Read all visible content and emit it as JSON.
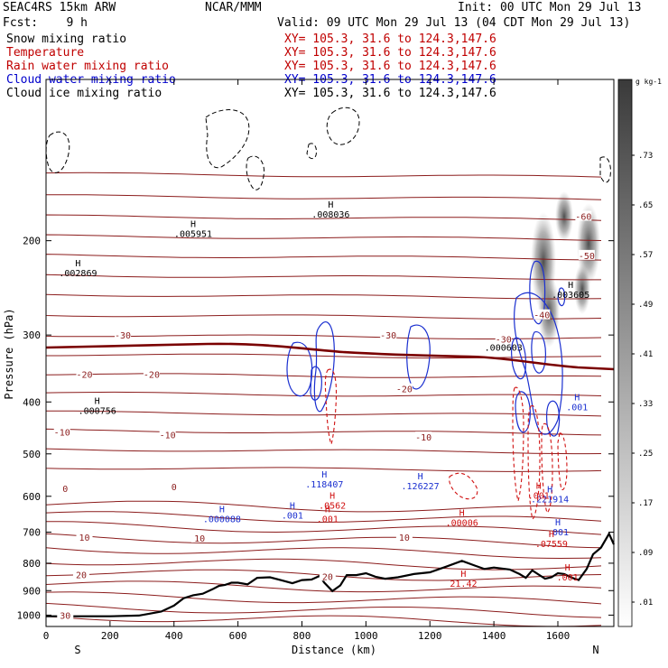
{
  "header": {
    "model": "SEAC4RS 15km ARW",
    "org": "NCAR/MMM",
    "init": "Init: 00 UTC Mon 29 Jul 13",
    "fcst": "Fcst:    9 h",
    "valid": "Valid: 09 UTC Mon 29 Jul 13 (04 CDT Mon 29 Jul 13)",
    "fields": [
      {
        "label": "Snow mixing ratio",
        "xy": "XY= 105.3, 31.6 to 124.3,147.6",
        "color": "#000000"
      },
      {
        "label": "Temperature",
        "xy": "XY= 105.3, 31.6 to 124.3,147.6",
        "color": "#c00000"
      },
      {
        "label": "Rain water mixing ratio",
        "xy": "XY= 105.3, 31.6 to 124.3,147.6",
        "color": "#c00000"
      },
      {
        "label": "Cloud water mixing ratio",
        "xy": "XY= 105.3, 31.6 to 124.3,147.6",
        "color": "#0000cc"
      },
      {
        "label": "Cloud ice mixing ratio",
        "xy": "XY= 105.3, 31.6 to 124.3,147.6",
        "color": "#000000"
      }
    ]
  },
  "chart_data": {
    "type": "cross-section",
    "xlabel": "Distance (km)",
    "ylabel": "Pressure (hPa)",
    "xlim": [
      0,
      1775
    ],
    "ylim_log_pressure": [
      100,
      1050
    ],
    "xticks": [
      0,
      200,
      400,
      600,
      800,
      1000,
      1200,
      1400,
      1600
    ],
    "yticks": [
      200,
      300,
      400,
      500,
      600,
      700,
      800,
      900,
      1000
    ],
    "x_end_labels": {
      "left": "S",
      "right": "N"
    },
    "colorbar": {
      "units": "g kg-1",
      "ticks": [
        ".73",
        ".65",
        ".57",
        ".49",
        ".41",
        ".33",
        ".25",
        ".17",
        ".09",
        ".01"
      ]
    },
    "temperature_isotherms": [
      {
        "label": "-60",
        "x": 1680,
        "p": 180
      },
      {
        "label": "-50",
        "x": 1690,
        "p": 213
      },
      {
        "label": "-40",
        "x": 1550,
        "p": 275
      },
      {
        "label": "-30",
        "x": 240,
        "p": 300
      },
      {
        "label": "-30",
        "x": 1070,
        "p": 300
      },
      {
        "label": "-30",
        "x": 1430,
        "p": 305
      },
      {
        "label": "-20",
        "x": 120,
        "p": 355
      },
      {
        "label": "-20",
        "x": 330,
        "p": 355
      },
      {
        "label": "-20",
        "x": 1120,
        "p": 378
      },
      {
        "label": "-10",
        "x": 50,
        "p": 455
      },
      {
        "label": "-10",
        "x": 380,
        "p": 460
      },
      {
        "label": "-10",
        "x": 1180,
        "p": 465
      },
      {
        "label": "0",
        "x": 60,
        "p": 580
      },
      {
        "label": "0",
        "x": 400,
        "p": 575
      },
      {
        "label": "10",
        "x": 120,
        "p": 715
      },
      {
        "label": "10",
        "x": 480,
        "p": 718
      },
      {
        "label": "10",
        "x": 1120,
        "p": 715
      },
      {
        "label": "20",
        "x": 110,
        "p": 840
      },
      {
        "label": "20",
        "x": 880,
        "p": 846
      },
      {
        "label": "30",
        "x": 60,
        "p": 1000
      }
    ],
    "maxima": [
      {
        "field": "snow",
        "value": ".002869",
        "x": 100,
        "p": 225
      },
      {
        "field": "snow",
        "value": ".005951",
        "x": 460,
        "p": 190
      },
      {
        "field": "snow",
        "value": ".008036",
        "x": 890,
        "p": 175
      },
      {
        "field": "snow",
        "value": ".003605",
        "x": 1640,
        "p": 247
      },
      {
        "field": "snow",
        "value": ".000603",
        "x": 1430,
        "p": 310
      },
      {
        "field": "snow",
        "value": ".000756",
        "x": 160,
        "p": 407
      },
      {
        "field": "cloud_water",
        "value": ".118407",
        "x": 870,
        "p": 558
      },
      {
        "field": "cloud_water",
        "value": ".126227",
        "x": 1170,
        "p": 562
      },
      {
        "field": "cloud_water",
        "value": ".000088",
        "x": 550,
        "p": 648
      },
      {
        "field": "cloud_water",
        "value": ".001",
        "x": 770,
        "p": 638
      },
      {
        "field": "cloud_water",
        "value": ".221914",
        "x": 1575,
        "p": 595
      },
      {
        "field": "cloud_water",
        "value": ".001",
        "x": 1660,
        "p": 400
      },
      {
        "field": "cloud_water",
        "value": ".001",
        "x": 1600,
        "p": 685
      },
      {
        "field": "rain",
        "value": ".0562",
        "x": 895,
        "p": 611
      },
      {
        "field": "rain",
        "value": ".001",
        "x": 880,
        "p": 648
      },
      {
        "field": "rain",
        "value": ".00006",
        "x": 1300,
        "p": 658
      },
      {
        "field": "rain",
        "value": ".001",
        "x": 1540,
        "p": 585
      },
      {
        "field": "rain",
        "value": ".07559",
        "x": 1580,
        "p": 720
      },
      {
        "field": "rain",
        "value": "21.42",
        "x": 1305,
        "p": 855
      },
      {
        "field": "rain",
        "value": ".001",
        "x": 1630,
        "p": 832
      }
    ],
    "terrain_surface": [
      [
        0,
        1005
      ],
      [
        100,
        1005
      ],
      [
        200,
        1005
      ],
      [
        290,
        1002
      ],
      [
        320,
        995
      ],
      [
        360,
        985
      ],
      [
        400,
        960
      ],
      [
        430,
        930
      ],
      [
        460,
        918
      ],
      [
        490,
        912
      ],
      [
        520,
        895
      ],
      [
        540,
        882
      ],
      [
        560,
        878
      ],
      [
        580,
        870
      ],
      [
        600,
        870
      ],
      [
        630,
        876
      ],
      [
        660,
        852
      ],
      [
        700,
        850
      ],
      [
        740,
        862
      ],
      [
        770,
        872
      ],
      [
        800,
        860
      ],
      [
        830,
        858
      ],
      [
        855,
        845
      ],
      [
        870,
        870
      ],
      [
        895,
        902
      ],
      [
        920,
        880
      ],
      [
        940,
        842
      ],
      [
        970,
        842
      ],
      [
        1000,
        835
      ],
      [
        1030,
        848
      ],
      [
        1060,
        855
      ],
      [
        1100,
        850
      ],
      [
        1150,
        838
      ],
      [
        1200,
        832
      ],
      [
        1250,
        812
      ],
      [
        1300,
        792
      ],
      [
        1340,
        808
      ],
      [
        1370,
        820
      ],
      [
        1400,
        815
      ],
      [
        1450,
        822
      ],
      [
        1480,
        838
      ],
      [
        1500,
        852
      ],
      [
        1520,
        825
      ],
      [
        1540,
        840
      ],
      [
        1560,
        855
      ],
      [
        1580,
        850
      ],
      [
        1600,
        835
      ],
      [
        1620,
        838
      ],
      [
        1640,
        850
      ],
      [
        1665,
        860
      ],
      [
        1690,
        820
      ],
      [
        1710,
        770
      ],
      [
        1735,
        748
      ],
      [
        1760,
        705
      ],
      [
        1775,
        738
      ]
    ]
  }
}
